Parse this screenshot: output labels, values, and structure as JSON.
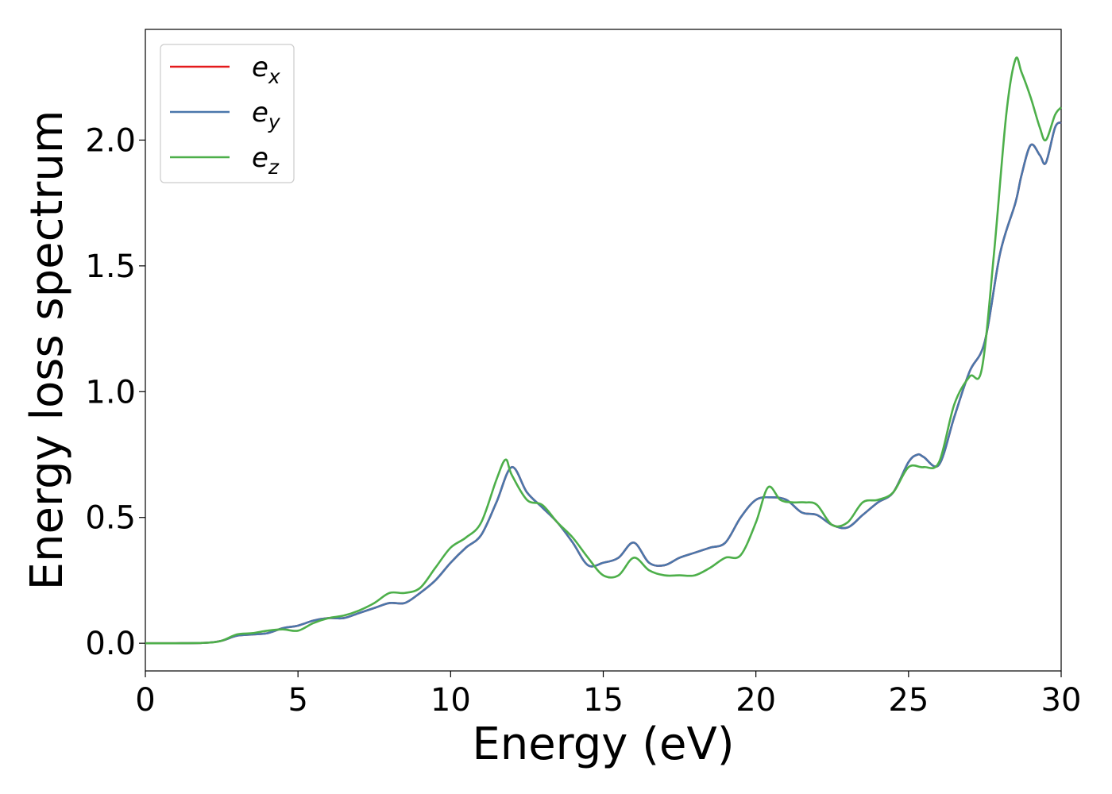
{
  "chart_data": {
    "type": "line",
    "xlabel": "Energy (eV)",
    "ylabel": "Energy loss spectrum",
    "xlim": [
      0,
      30
    ],
    "ylim": [
      -0.11,
      2.44
    ],
    "xticks": [
      0,
      5,
      10,
      15,
      20,
      25,
      30
    ],
    "yticks": [
      0.0,
      0.5,
      1.0,
      1.5,
      2.0
    ],
    "xtick_labels": [
      "0",
      "5",
      "10",
      "15",
      "20",
      "25",
      "30"
    ],
    "ytick_labels": [
      "0.0",
      "0.5",
      "1.0",
      "1.5",
      "2.0"
    ],
    "grid": false,
    "legend_position": "top-left",
    "series": [
      {
        "name": "e",
        "sub": "x",
        "color": "#e41a1c",
        "x": [
          0,
          1,
          2,
          2.5,
          3,
          3.5,
          4,
          4.5,
          5,
          5.5,
          6,
          6.5,
          7,
          7.5,
          8,
          8.5,
          9,
          9.5,
          10,
          10.5,
          11,
          11.5,
          12,
          12.5,
          13,
          13.5,
          14,
          14.5,
          15,
          15.5,
          16,
          16.5,
          17,
          17.5,
          18,
          18.5,
          19,
          19.5,
          20,
          20.5,
          21,
          21.5,
          22,
          22.5,
          23,
          23.5,
          24,
          24.5,
          25,
          25.3,
          25.5,
          26,
          26.5,
          27,
          27.5,
          28,
          28.5,
          28.7,
          29,
          29.3,
          29.5,
          29.8,
          30
        ],
        "y": [
          0,
          0,
          0.002,
          0.01,
          0.03,
          0.035,
          0.04,
          0.06,
          0.07,
          0.09,
          0.1,
          0.1,
          0.12,
          0.14,
          0.16,
          0.16,
          0.2,
          0.25,
          0.32,
          0.38,
          0.43,
          0.56,
          0.7,
          0.6,
          0.54,
          0.48,
          0.4,
          0.31,
          0.32,
          0.34,
          0.4,
          0.32,
          0.31,
          0.34,
          0.36,
          0.38,
          0.4,
          0.5,
          0.57,
          0.58,
          0.57,
          0.52,
          0.51,
          0.47,
          0.46,
          0.51,
          0.56,
          0.6,
          0.72,
          0.75,
          0.74,
          0.71,
          0.9,
          1.08,
          1.2,
          1.55,
          1.75,
          1.86,
          1.98,
          1.94,
          1.91,
          2.05,
          2.07
        ]
      },
      {
        "name": "e",
        "sub": "y",
        "color": "#4a77ab",
        "x": [
          0,
          1,
          2,
          2.5,
          3,
          3.5,
          4,
          4.5,
          5,
          5.5,
          6,
          6.5,
          7,
          7.5,
          8,
          8.5,
          9,
          9.5,
          10,
          10.5,
          11,
          11.5,
          12,
          12.5,
          13,
          13.5,
          14,
          14.5,
          15,
          15.5,
          16,
          16.5,
          17,
          17.5,
          18,
          18.5,
          19,
          19.5,
          20,
          20.5,
          21,
          21.5,
          22,
          22.5,
          23,
          23.5,
          24,
          24.5,
          25,
          25.3,
          25.5,
          26,
          26.5,
          27,
          27.5,
          28,
          28.5,
          28.7,
          29,
          29.3,
          29.5,
          29.8,
          30
        ],
        "y": [
          0,
          0,
          0.002,
          0.01,
          0.03,
          0.035,
          0.04,
          0.06,
          0.07,
          0.09,
          0.1,
          0.1,
          0.12,
          0.14,
          0.16,
          0.16,
          0.2,
          0.25,
          0.32,
          0.38,
          0.43,
          0.56,
          0.7,
          0.6,
          0.54,
          0.48,
          0.4,
          0.31,
          0.32,
          0.34,
          0.4,
          0.32,
          0.31,
          0.34,
          0.36,
          0.38,
          0.4,
          0.5,
          0.57,
          0.58,
          0.57,
          0.52,
          0.51,
          0.47,
          0.46,
          0.51,
          0.56,
          0.6,
          0.72,
          0.75,
          0.74,
          0.71,
          0.9,
          1.08,
          1.2,
          1.55,
          1.75,
          1.86,
          1.98,
          1.94,
          1.91,
          2.05,
          2.07
        ]
      },
      {
        "name": "e",
        "sub": "z",
        "color": "#4daf4a",
        "x": [
          0,
          1,
          2,
          2.5,
          3,
          3.5,
          4,
          4.5,
          5,
          5.5,
          6,
          6.5,
          7,
          7.5,
          8,
          8.5,
          9,
          9.5,
          10,
          10.5,
          11,
          11.5,
          11.8,
          12,
          12.5,
          13,
          13.5,
          14,
          14.5,
          15,
          15.5,
          16,
          16.5,
          17,
          17.5,
          18,
          18.5,
          19,
          19.5,
          20,
          20.4,
          20.8,
          21.2,
          21.6,
          22,
          22.5,
          23,
          23.5,
          24,
          24.5,
          25,
          25.5,
          26,
          26.5,
          27,
          27.4,
          27.8,
          28.2,
          28.5,
          28.7,
          29,
          29.3,
          29.5,
          29.8,
          30
        ],
        "y": [
          0,
          0,
          0.002,
          0.01,
          0.035,
          0.04,
          0.05,
          0.055,
          0.05,
          0.08,
          0.1,
          0.11,
          0.13,
          0.16,
          0.2,
          0.2,
          0.22,
          0.3,
          0.38,
          0.42,
          0.48,
          0.65,
          0.73,
          0.67,
          0.57,
          0.55,
          0.48,
          0.42,
          0.34,
          0.27,
          0.27,
          0.34,
          0.29,
          0.27,
          0.27,
          0.27,
          0.3,
          0.34,
          0.35,
          0.48,
          0.62,
          0.57,
          0.56,
          0.56,
          0.55,
          0.47,
          0.48,
          0.56,
          0.57,
          0.6,
          0.7,
          0.7,
          0.72,
          0.95,
          1.06,
          1.09,
          1.55,
          2.1,
          2.32,
          2.27,
          2.17,
          2.05,
          2.0,
          2.1,
          2.13
        ]
      }
    ]
  }
}
